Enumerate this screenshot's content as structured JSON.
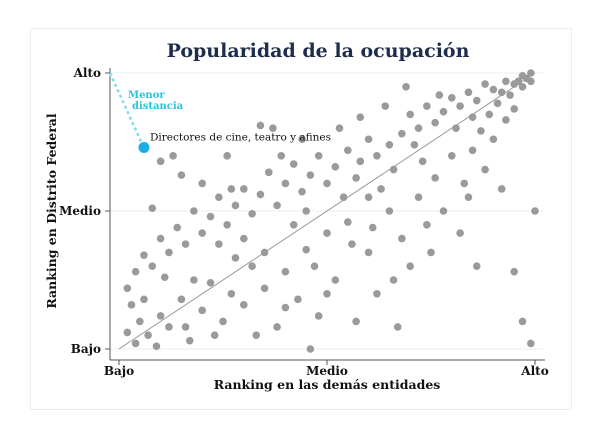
{
  "chart_data": {
    "type": "scatter",
    "title": "Popularidad de la ocupación",
    "xlabel": "Ranking en las demás entidades",
    "ylabel": "Ranking en Distrito Federal",
    "xlim": [
      0,
      1
    ],
    "ylim": [
      0,
      1
    ],
    "xticks": [
      {
        "value": 0,
        "label": "Bajo"
      },
      {
        "value": 0.5,
        "label": "Medio"
      },
      {
        "value": 1,
        "label": "Alto"
      }
    ],
    "yticks": [
      {
        "value": 0,
        "label": "Bajo"
      },
      {
        "value": 0.5,
        "label": "Medio"
      },
      {
        "value": 1,
        "label": "Alto"
      }
    ],
    "grid": "horizontal",
    "reference_line": "y = x",
    "colors": {
      "points": "#9a9a9a",
      "highlight": "#19aee6",
      "title": "#1f2d4d",
      "grid": "#e6f1f1"
    },
    "highlight": {
      "x": 0.06,
      "y": 0.73,
      "label": "Directores de cine, teatro y afines"
    },
    "annotation": "Menor distancia",
    "points": [
      [
        0.97,
        0.99
      ],
      [
        0.98,
        0.98
      ],
      [
        0.96,
        0.97
      ],
      [
        0.99,
        1.0
      ],
      [
        0.95,
        0.96
      ],
      [
        0.97,
        0.95
      ],
      [
        0.93,
        0.97
      ],
      [
        0.99,
        0.97
      ],
      [
        0.92,
        0.93
      ],
      [
        0.9,
        0.94
      ],
      [
        0.94,
        0.92
      ],
      [
        0.88,
        0.96
      ],
      [
        0.86,
        0.9
      ],
      [
        0.91,
        0.89
      ],
      [
        0.84,
        0.93
      ],
      [
        0.82,
        0.88
      ],
      [
        0.89,
        0.85
      ],
      [
        0.8,
        0.91
      ],
      [
        0.85,
        0.84
      ],
      [
        0.78,
        0.86
      ],
      [
        0.93,
        0.83
      ],
      [
        0.76,
        0.82
      ],
      [
        0.81,
        0.8
      ],
      [
        0.87,
        0.79
      ],
      [
        0.74,
        0.88
      ],
      [
        0.72,
        0.8
      ],
      [
        0.95,
        0.87
      ],
      [
        0.7,
        0.85
      ],
      [
        0.68,
        0.78
      ],
      [
        0.65,
        0.74
      ],
      [
        0.62,
        0.7
      ],
      [
        0.6,
        0.76
      ],
      [
        0.66,
        0.65
      ],
      [
        0.58,
        0.68
      ],
      [
        0.55,
        0.72
      ],
      [
        0.57,
        0.62
      ],
      [
        0.63,
        0.58
      ],
      [
        0.52,
        0.66
      ],
      [
        0.5,
        0.6
      ],
      [
        0.48,
        0.7
      ],
      [
        0.54,
        0.55
      ],
      [
        0.46,
        0.63
      ],
      [
        0.44,
        0.57
      ],
      [
        0.42,
        0.67
      ],
      [
        0.4,
        0.6
      ],
      [
        0.38,
        0.52
      ],
      [
        0.36,
        0.64
      ],
      [
        0.34,
        0.56
      ],
      [
        0.32,
        0.49
      ],
      [
        0.3,
        0.58
      ],
      [
        0.28,
        0.52
      ],
      [
        0.26,
        0.45
      ],
      [
        0.24,
        0.55
      ],
      [
        0.22,
        0.48
      ],
      [
        0.2,
        0.42
      ],
      [
        0.18,
        0.5
      ],
      [
        0.16,
        0.38
      ],
      [
        0.14,
        0.44
      ],
      [
        0.12,
        0.35
      ],
      [
        0.1,
        0.4
      ],
      [
        0.08,
        0.3
      ],
      [
        0.06,
        0.34
      ],
      [
        0.04,
        0.28
      ],
      [
        0.02,
        0.22
      ],
      [
        0.03,
        0.16
      ],
      [
        0.05,
        0.1
      ],
      [
        0.02,
        0.06
      ],
      [
        0.04,
        0.02
      ],
      [
        0.07,
        0.05
      ],
      [
        0.1,
        0.12
      ],
      [
        0.12,
        0.08
      ],
      [
        0.15,
        0.18
      ],
      [
        0.17,
        0.03
      ],
      [
        0.2,
        0.14
      ],
      [
        0.22,
        0.24
      ],
      [
        0.25,
        0.1
      ],
      [
        0.27,
        0.2
      ],
      [
        0.23,
        0.05
      ],
      [
        0.3,
        0.16
      ],
      [
        0.32,
        0.3
      ],
      [
        0.35,
        0.22
      ],
      [
        0.38,
        0.08
      ],
      [
        0.4,
        0.28
      ],
      [
        0.43,
        0.18
      ],
      [
        0.45,
        0.36
      ],
      [
        0.48,
        0.12
      ],
      [
        0.47,
        0.3
      ],
      [
        0.5,
        0.42
      ],
      [
        0.52,
        0.25
      ],
      [
        0.55,
        0.46
      ],
      [
        0.57,
        0.1
      ],
      [
        0.6,
        0.35
      ],
      [
        0.62,
        0.2
      ],
      [
        0.65,
        0.5
      ],
      [
        0.68,
        0.4
      ],
      [
        0.7,
        0.3
      ],
      [
        0.67,
        0.08
      ],
      [
        0.72,
        0.55
      ],
      [
        0.74,
        0.45
      ],
      [
        0.76,
        0.62
      ],
      [
        0.78,
        0.5
      ],
      [
        0.8,
        0.7
      ],
      [
        0.75,
        0.35
      ],
      [
        0.83,
        0.6
      ],
      [
        0.85,
        0.72
      ],
      [
        0.88,
        0.65
      ],
      [
        0.9,
        0.76
      ],
      [
        0.92,
        0.58
      ],
      [
        0.95,
        0.28
      ],
      [
        0.97,
        0.1
      ],
      [
        0.99,
        0.02
      ],
      [
        0.86,
        0.3
      ],
      [
        1.0,
        0.5
      ],
      [
        0.46,
        0.0
      ],
      [
        0.15,
        0.63
      ],
      [
        0.13,
        0.7
      ],
      [
        0.34,
        0.81
      ],
      [
        0.37,
        0.8
      ],
      [
        0.26,
        0.7
      ],
      [
        0.08,
        0.51
      ],
      [
        0.1,
        0.68
      ],
      [
        0.2,
        0.6
      ],
      [
        0.3,
        0.4
      ],
      [
        0.42,
        0.45
      ],
      [
        0.53,
        0.8
      ],
      [
        0.58,
        0.84
      ],
      [
        0.64,
        0.88
      ],
      [
        0.71,
        0.74
      ],
      [
        0.35,
        0.35
      ],
      [
        0.18,
        0.25
      ],
      [
        0.28,
        0.33
      ],
      [
        0.44,
        0.76
      ],
      [
        0.5,
        0.2
      ],
      [
        0.6,
        0.55
      ],
      [
        0.4,
        0.15
      ],
      [
        0.24,
        0.38
      ],
      [
        0.06,
        0.18
      ],
      [
        0.11,
        0.26
      ],
      [
        0.33,
        0.05
      ],
      [
        0.56,
        0.38
      ],
      [
        0.66,
        0.25
      ],
      [
        0.82,
        0.42
      ],
      [
        0.73,
        0.68
      ],
      [
        0.77,
        0.92
      ],
      [
        0.69,
        0.95
      ],
      [
        0.16,
        0.08
      ],
      [
        0.09,
        0.01
      ],
      [
        0.27,
        0.58
      ],
      [
        0.39,
        0.7
      ],
      [
        0.45,
        0.5
      ],
      [
        0.61,
        0.44
      ],
      [
        0.84,
        0.55
      ]
    ]
  }
}
